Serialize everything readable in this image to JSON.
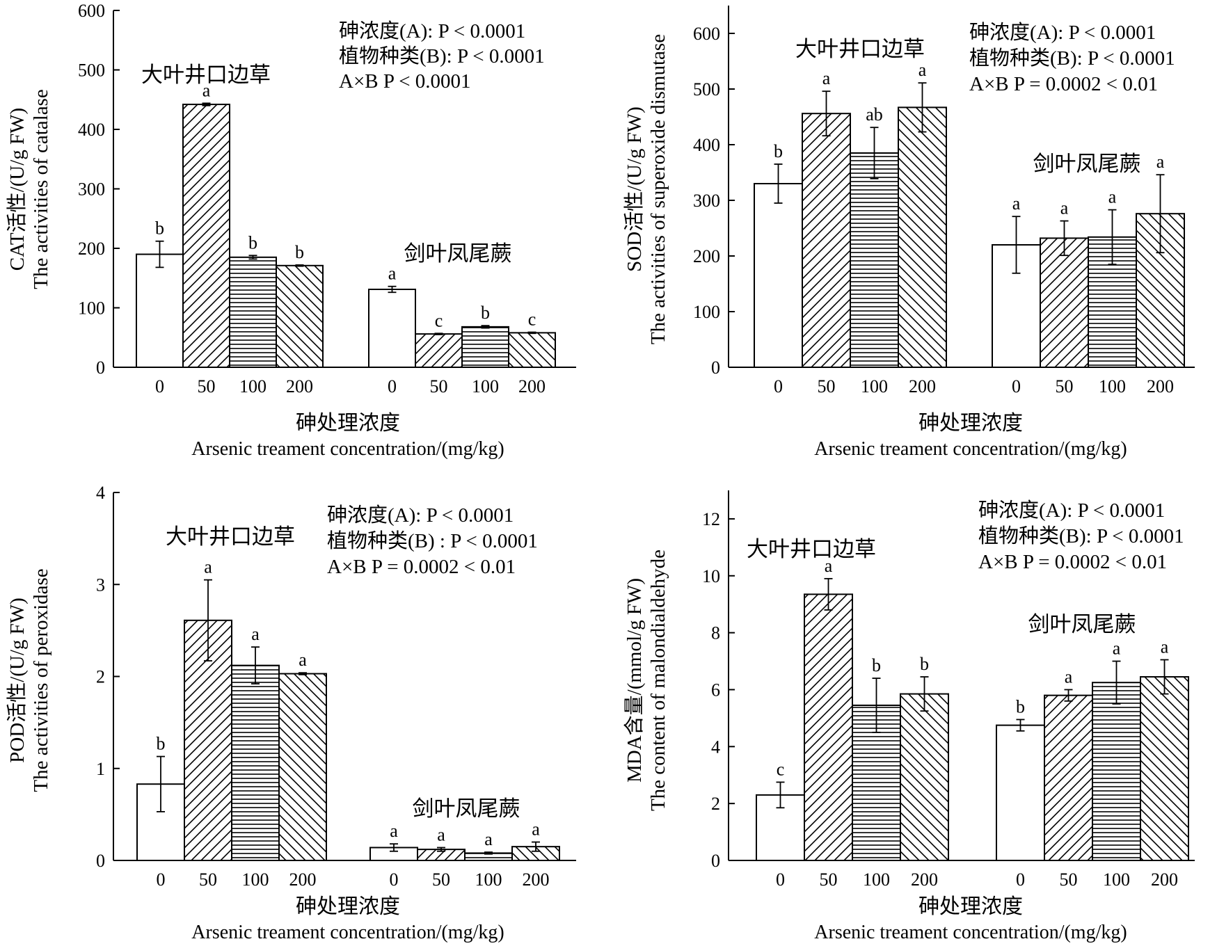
{
  "patterns": [
    {
      "id": "pat-open",
      "kind": "open"
    },
    {
      "id": "pat-fwd",
      "kind": "forward-hatch"
    },
    {
      "id": "pat-hor",
      "kind": "horizontal-hatch"
    },
    {
      "id": "pat-back",
      "kind": "back-hatch"
    }
  ],
  "colors": {
    "ink": "#000000",
    "background": "#ffffff"
  },
  "chart_data": [
    {
      "id": "cat",
      "type": "bar",
      "ylim": [
        0,
        600
      ],
      "yticks": [
        "0",
        "100",
        "200",
        "300",
        "400",
        "500",
        "600"
      ],
      "ylabel_zh": "CAT活性/(U/g FW)",
      "ylabel_en": "The activities of catalase",
      "xlabel_zh": "砷处理浓度",
      "xlabel_en": "Arsenic treament concentration/(mg/kg)",
      "stats": [
        "砷浓度(A): P < 0.0001",
        "植物种类(B): P < 0.0001",
        "A×B  P < 0.0001"
      ],
      "categories": [
        "0",
        "50",
        "100",
        "200"
      ],
      "groups": [
        {
          "name": "大叶井口边草",
          "values": [
            190,
            442,
            185,
            171
          ],
          "errors": [
            22,
            2,
            3,
            1
          ],
          "letters": [
            "b",
            "a",
            "b",
            "b"
          ]
        },
        {
          "name": "剑叶凤尾蕨",
          "values": [
            131,
            56,
            68,
            58
          ],
          "errors": [
            5,
            1,
            2,
            1
          ],
          "letters": [
            "a",
            "c",
            "b",
            "c"
          ]
        }
      ]
    },
    {
      "id": "sod",
      "type": "bar",
      "ylim": [
        0,
        650
      ],
      "yticks": [
        "0",
        "100",
        "200",
        "300",
        "400",
        "500",
        "600"
      ],
      "ylabel_zh": "SOD活性/(U/g FW)",
      "ylabel_en": "The activities of superoxide dismutase",
      "xlabel_zh": "砷处理浓度",
      "xlabel_en": "Arsenic treament concentration/(mg/kg)",
      "stats": [
        "砷浓度(A):  P < 0.0001",
        "植物种类(B): P < 0.0001",
        "A×B  P = 0.0002 < 0.01"
      ],
      "categories": [
        "0",
        "50",
        "100",
        "200"
      ],
      "groups": [
        {
          "name": "大叶井口边草",
          "values": [
            330,
            456,
            385,
            467
          ],
          "errors": [
            35,
            40,
            46,
            44
          ],
          "letters": [
            "b",
            "a",
            "ab",
            "a"
          ]
        },
        {
          "name": "剑叶凤尾蕨",
          "values": [
            220,
            232,
            234,
            276
          ],
          "errors": [
            51,
            31,
            49,
            70
          ],
          "letters": [
            "a",
            "a",
            "a",
            "a"
          ]
        }
      ]
    },
    {
      "id": "pod",
      "type": "bar",
      "ylim": [
        0,
        4
      ],
      "yticks": [
        "0",
        "1",
        "2",
        "3",
        "4"
      ],
      "ylabel_zh": "POD活性/(U/g FW)",
      "ylabel_en": "The activities of peroxidase",
      "xlabel_zh": "砷处理浓度",
      "xlabel_en": "Arsenic treament concentration/(mg/kg)",
      "stats": [
        "砷浓度(A): P < 0.0001",
        "植物种类(B) : P < 0.0001",
        "A×B  P = 0.0002 < 0.01"
      ],
      "categories": [
        "0",
        "50",
        "100",
        "200"
      ],
      "groups": [
        {
          "name": "大叶井口边草",
          "values": [
            0.83,
            2.61,
            2.12,
            2.03
          ],
          "errors": [
            0.3,
            0.44,
            0.2,
            0.01
          ],
          "letters": [
            "b",
            "a",
            "a",
            "a"
          ]
        },
        {
          "name": "剑叶凤尾蕨",
          "values": [
            0.14,
            0.12,
            0.08,
            0.15
          ],
          "errors": [
            0.04,
            0.02,
            0.01,
            0.05
          ],
          "letters": [
            "a",
            "a",
            "a",
            "a"
          ]
        }
      ]
    },
    {
      "id": "mda",
      "type": "bar",
      "ylim": [
        0,
        13
      ],
      "yticks": [
        "0",
        "2",
        "4",
        "6",
        "8",
        "10",
        "12"
      ],
      "ylabel_zh": "MDA含量/(mmol/g FW)",
      "ylabel_en": "The content of malondialdehyde",
      "xlabel_zh": "砷处理浓度",
      "xlabel_en": "Arsenic treament concentration/(mg/kg)",
      "stats": [
        "砷浓度(A): P < 0.0001",
        "植物种类(B): P < 0.0001",
        "A×B  P = 0.0002 < 0.01"
      ],
      "categories": [
        "0",
        "50",
        "100",
        "200"
      ],
      "groups": [
        {
          "name": "大叶井口边草",
          "values": [
            2.3,
            9.35,
            5.45,
            5.85
          ],
          "errors": [
            0.45,
            0.55,
            0.95,
            0.6
          ],
          "letters": [
            "c",
            "a",
            "b",
            "b"
          ]
        },
        {
          "name": "剑叶凤尾蕨",
          "values": [
            4.75,
            5.8,
            6.25,
            6.45
          ],
          "errors": [
            0.2,
            0.2,
            0.75,
            0.6
          ],
          "letters": [
            "b",
            "a",
            "a",
            "a"
          ]
        }
      ]
    }
  ]
}
